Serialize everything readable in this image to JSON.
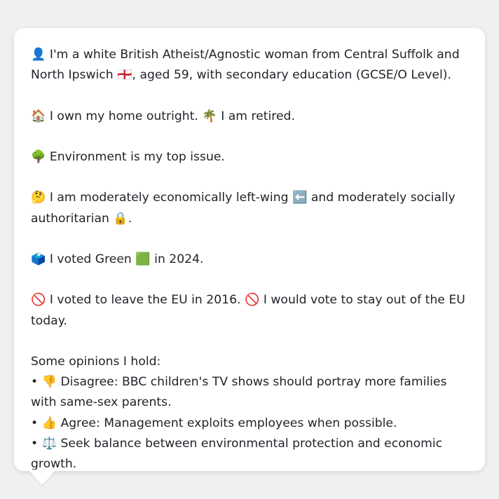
{
  "paragraphs": [
    {
      "emoji": "👤",
      "text": " I'm a white British Atheist/Agnostic woman from Central Suffolk and North Ipswich ",
      "flag": "🏴󠁧󠁢󠁥󠁮󠁧󠁿",
      "text_after": ", aged 59, with secondary education (GCSE/O Level)."
    },
    {
      "emoji": "🏠",
      "text": " I own my home outright. ",
      "emoji2": "🌴",
      "text_after": " I am retired."
    },
    {
      "emoji": "🌳",
      "text": " Environment is my top issue."
    },
    {
      "emoji": "🤔",
      "text": " I am moderately economically left-wing ",
      "emoji2": "⬅️",
      "text_mid": " and moderately socially authoritarian ",
      "emoji3": "🔒",
      "text_after": "."
    },
    {
      "emoji": "🗳️",
      "text": " I voted Green ",
      "emoji2": "🟩",
      "text_after": " in 2024."
    },
    {
      "emoji": "🚫",
      "text": " I voted to leave the EU in 2016. ",
      "emoji2": "🚫",
      "text_after": " I would vote to stay out of the EU today."
    }
  ],
  "opinions_heading": "Some opinions I hold:",
  "opinions": [
    {
      "bullet": "• ",
      "emoji": "👎",
      "text": " Disagree: BBC children's TV shows should portray more families with same-sex parents."
    },
    {
      "bullet": "• ",
      "emoji": "👍",
      "text": " Agree: Management exploits employees when possible."
    },
    {
      "bullet": "• ",
      "emoji": "⚖️",
      "text": " Seek balance between environmental protection and economic growth."
    }
  ]
}
